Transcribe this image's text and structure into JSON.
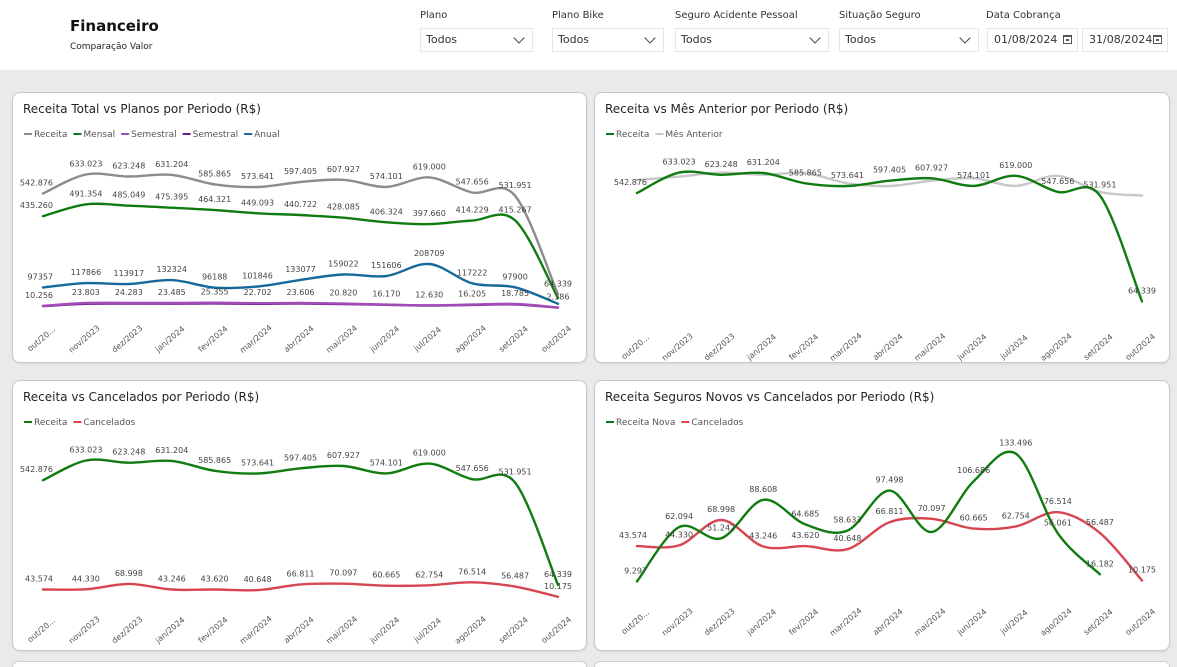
{
  "header": {
    "title": "Financeiro",
    "subtitle": "Comparação Valor"
  },
  "filters": {
    "plano": {
      "label": "Plano",
      "value": "Todos"
    },
    "plano_bike": {
      "label": "Plano Bike",
      "value": "Todos"
    },
    "seguro_acidente": {
      "label": "Seguro Acidente Pessoal",
      "value": "Todos"
    },
    "situacao_seguro": {
      "label": "Situação Seguro",
      "value": "Todos"
    },
    "data_cobranca": {
      "label": "Data Cobrança",
      "start": "01/08/2024",
      "end": "31/08/2024"
    }
  },
  "colors": {
    "receita_gray": "#8c8c8c",
    "green": "#107c10",
    "purple1": "#a14cb8",
    "purple2": "#6b1b8a",
    "blue": "#166a9a",
    "light_gray": "#c8c8c8",
    "red": "#d64550"
  },
  "chart_data": [
    {
      "type": "line",
      "title": "Receita Total vs Planos por Periodo (R$)",
      "categories": [
        "out/20...",
        "nov/2023",
        "dez/2023",
        "jan/2024",
        "fev/2024",
        "mar/2024",
        "abr/2024",
        "mai/2024",
        "jun/2024",
        "jul/2024",
        "ago/2024",
        "set/2024",
        "out/2024"
      ],
      "series": [
        {
          "name": "Receita",
          "color": "#8c8c8c",
          "values": [
            542876,
            633023,
            623248,
            631204,
            585865,
            573641,
            597405,
            607927,
            574101,
            619000,
            547656,
            531951,
            64339
          ],
          "labels": [
            "542.876",
            "633.023",
            "623.248",
            "631.204",
            "585.865",
            "573.641",
            "597.405",
            "607.927",
            "574.101",
            "619.000",
            "547.656",
            "531.951",
            "64.339"
          ]
        },
        {
          "name": "Mensal",
          "color": "#107c10",
          "values": [
            435260,
            491354,
            485049,
            475395,
            464321,
            449093,
            440722,
            428085,
            406324,
            397660,
            414229,
            415267,
            48000
          ],
          "labels": [
            "435.260",
            "491.354",
            "485.049",
            "475.395",
            "464.321",
            "449.093",
            "440.722",
            "428.085",
            "406.324",
            "397.660",
            "414.229",
            "415.267",
            ""
          ]
        },
        {
          "name": "Semestral",
          "color": "#a14cb8",
          "values": [
            10256,
            23803,
            24283,
            23485,
            25355,
            22702,
            23606,
            20820,
            16170,
            12630,
            16205,
            18785,
            2186
          ],
          "labels": [
            "10.256",
            "23.803",
            "24.283",
            "23.485",
            "25.355",
            "22.702",
            "23.606",
            "20.820",
            "16.170",
            "12.630",
            "16.205",
            "18.785",
            "2.186"
          ]
        },
        {
          "name": "Semestral",
          "color": "#6b1b8a",
          "values": [
            9000,
            20000,
            21000,
            20500,
            22000,
            20000,
            21000,
            19000,
            15000,
            11500,
            14500,
            17000,
            2000
          ],
          "labels": []
        },
        {
          "name": "Anual",
          "color": "#166a9a",
          "values": [
            97357,
            117866,
            113917,
            132324,
            96188,
            101846,
            133077,
            159022,
            151606,
            208709,
            117222,
            97900,
            20000
          ],
          "labels": [
            "97357",
            "117866",
            "113917",
            "132324",
            "96188",
            "101846",
            "133077",
            "159022",
            "151606",
            "208709",
            "117222",
            "97900",
            ""
          ]
        }
      ],
      "ylim": [
        0,
        640000
      ]
    },
    {
      "type": "line",
      "title": "Receita vs Mês Anterior por Periodo (R$)",
      "categories": [
        "out/20...",
        "nov/2023",
        "dez/2023",
        "jan/2024",
        "fev/2024",
        "mar/2024",
        "abr/2024",
        "mai/2024",
        "jun/2024",
        "jul/2024",
        "ago/2024",
        "set/2024",
        "out/2024"
      ],
      "series": [
        {
          "name": "Receita",
          "color": "#107c10",
          "values": [
            542876,
            633023,
            623248,
            631204,
            585865,
            573641,
            597405,
            607927,
            574101,
            619000,
            547656,
            531951,
            64339
          ],
          "labels": [
            "542.876",
            "633.023",
            "623.248",
            "631.204",
            "585.865",
            "573.641",
            "597.405",
            "607.927",
            "574.101",
            "619.000",
            "547.656",
            "531.951",
            "64.339"
          ]
        },
        {
          "name": "Mês Anterior",
          "color": "#c8c8c8",
          "values": [
            600000,
            615000,
            633023,
            623248,
            631204,
            585865,
            573641,
            597405,
            607927,
            574101,
            619000,
            547656,
            531951
          ],
          "labels": []
        }
      ],
      "ylim": [
        0,
        640000
      ]
    },
    {
      "type": "line",
      "title": "Receita vs Cancelados por Periodo (R$)",
      "categories": [
        "out/20...",
        "nov/2023",
        "dez/2023",
        "jan/2024",
        "fev/2024",
        "mar/2024",
        "abr/2024",
        "mai/2024",
        "jun/2024",
        "jul/2024",
        "ago/2024",
        "set/2024",
        "out/2024"
      ],
      "series": [
        {
          "name": "Receita",
          "color": "#107c10",
          "values": [
            542876,
            633023,
            623248,
            631204,
            585865,
            573641,
            597405,
            607927,
            574101,
            619000,
            547656,
            531951,
            64339
          ],
          "labels": [
            "542.876",
            "633.023",
            "623.248",
            "631.204",
            "585.865",
            "573.641",
            "597.405",
            "607.927",
            "574.101",
            "619.000",
            "547.656",
            "531.951",
            "64.339"
          ]
        },
        {
          "name": "Cancelados",
          "color": "#d64550",
          "values": [
            43574,
            44330,
            68998,
            43246,
            43620,
            40648,
            66811,
            70097,
            60665,
            62754,
            76514,
            56487,
            10175
          ],
          "labels": [
            "43.574",
            "44.330",
            "68.998",
            "43.246",
            "43.620",
            "40.648",
            "66.811",
            "70.097",
            "60.665",
            "62.754",
            "76.514",
            "56.487",
            "10.175"
          ]
        }
      ],
      "ylim": [
        0,
        640000
      ]
    },
    {
      "type": "line",
      "title": "Receita Seguros Novos vs Cancelados por Periodo (R$)",
      "categories": [
        "out/20...",
        "nov/2023",
        "dez/2023",
        "jan/2024",
        "fev/2024",
        "mar/2024",
        "abr/2024",
        "mai/2024",
        "jun/2024",
        "jul/2024",
        "ago/2024",
        "set/2024",
        "out/2024"
      ],
      "series": [
        {
          "name": "Receita Nova",
          "color": "#107c10",
          "values": [
            9297,
            62094,
            51242,
            88608,
            64685,
            58633,
            97498,
            57300,
            106686,
            133496,
            56061,
            16182,
            null
          ],
          "labels": [
            "9.297",
            "62.094",
            "51.242",
            "88.608",
            "64.685",
            "58.633",
            "97.498",
            "",
            "106.686",
            "133.496",
            "56.061",
            "16.182",
            ""
          ]
        },
        {
          "name": "Cancelados",
          "color": "#d64550",
          "values": [
            43574,
            44330,
            68998,
            43246,
            43620,
            40648,
            66811,
            70097,
            60665,
            62754,
            76514,
            56487,
            10175
          ],
          "labels": [
            "43.574",
            "44.330",
            "68.998",
            "43.246",
            "43.620",
            "40.648",
            "66.811",
            "70.097",
            "60.665",
            "62.754",
            "76.514",
            "56.487",
            "10.175"
          ]
        }
      ],
      "ylim": [
        0,
        136000
      ]
    }
  ]
}
